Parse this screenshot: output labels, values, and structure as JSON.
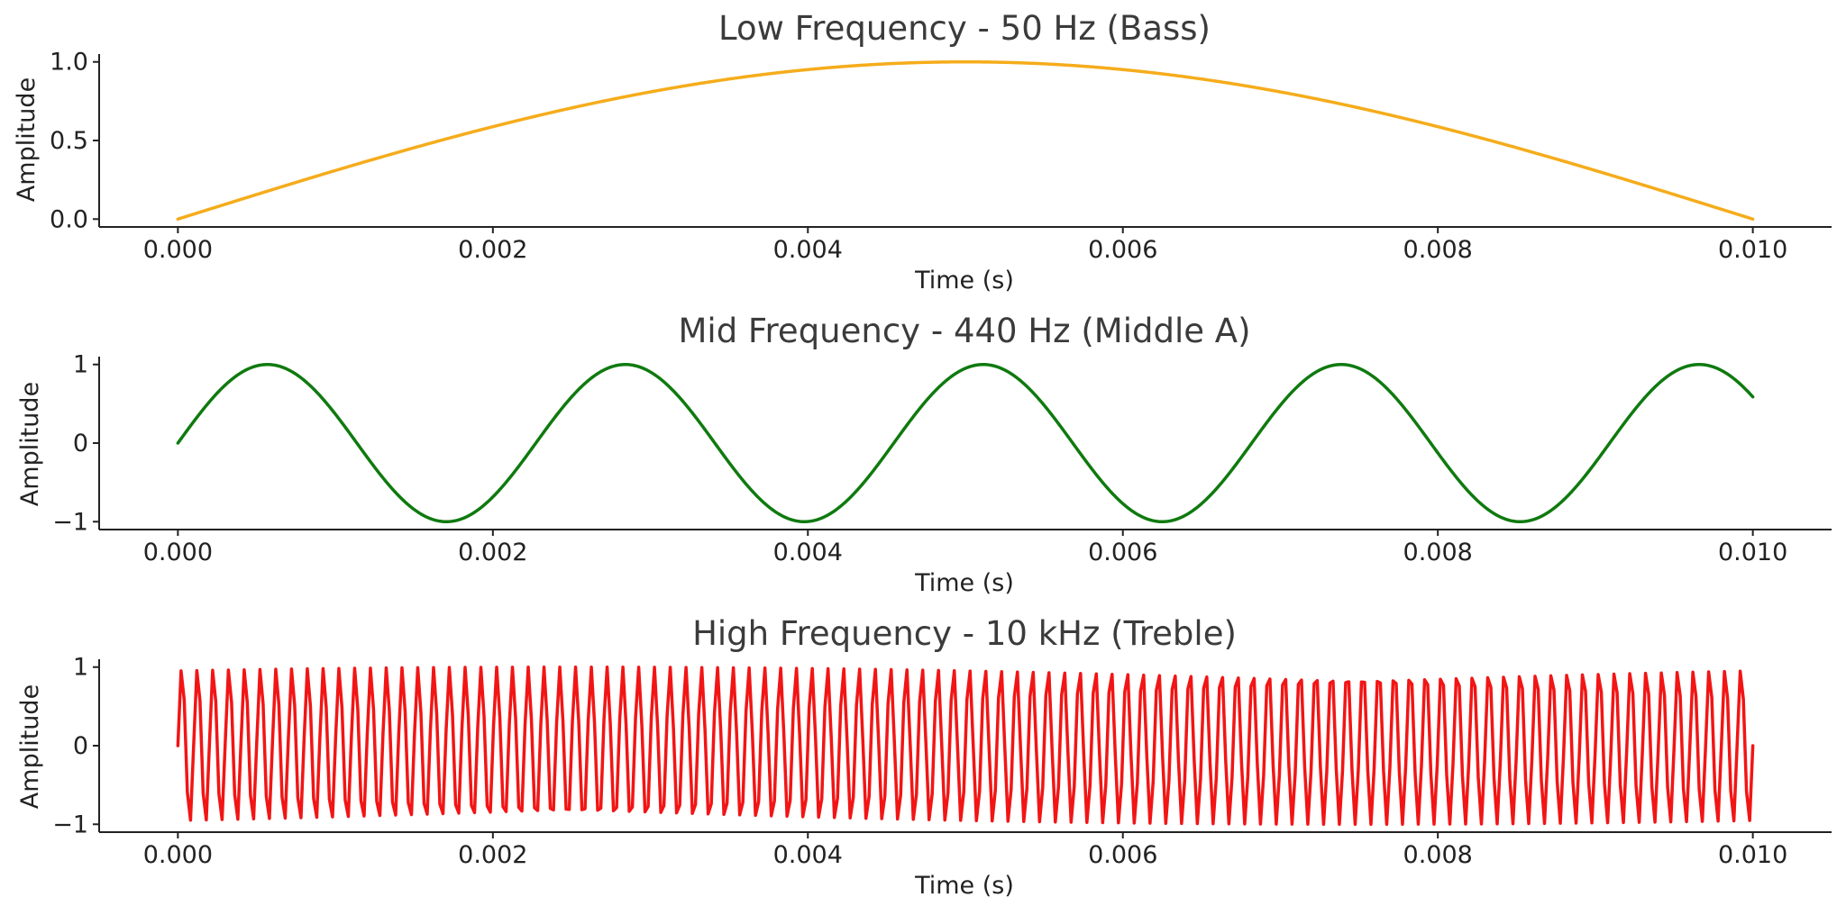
{
  "chart_data": [
    {
      "type": "line",
      "title": "Low Frequency - 50 Hz (Bass)",
      "xlabel": "Time (s)",
      "ylabel": "Amplitude",
      "xlim": [
        -0.0005,
        0.0105
      ],
      "ylim": [
        -0.05,
        1.05
      ],
      "xticks": [
        0,
        0.002,
        0.004,
        0.006,
        0.008,
        0.01
      ],
      "xtick_labels": [
        "0.000",
        "0.002",
        "0.004",
        "0.006",
        "0.008",
        "0.010"
      ],
      "yticks": [
        0,
        0.5,
        1
      ],
      "ytick_labels": [
        "0.0",
        "0.5",
        "1.0"
      ],
      "grid": false,
      "series": [
        {
          "function": "sine",
          "frequency_hz": 50,
          "amplitude": 1,
          "x_range": [
            0,
            0.01
          ],
          "samples": 1000,
          "color": "#f5ac1b"
        }
      ]
    },
    {
      "type": "line",
      "title": "Mid Frequency - 440 Hz (Middle A)",
      "xlabel": "Time (s)",
      "ylabel": "Amplitude",
      "xlim": [
        -0.0005,
        0.0105
      ],
      "ylim": [
        -1.1,
        1.1
      ],
      "xticks": [
        0,
        0.002,
        0.004,
        0.006,
        0.008,
        0.01
      ],
      "xtick_labels": [
        "0.000",
        "0.002",
        "0.004",
        "0.006",
        "0.008",
        "0.010"
      ],
      "yticks": [
        -1,
        0,
        1
      ],
      "ytick_labels": [
        "−1",
        "0",
        "1"
      ],
      "grid": false,
      "series": [
        {
          "function": "sine",
          "frequency_hz": 440,
          "amplitude": 1,
          "x_range": [
            0,
            0.01
          ],
          "samples": 1000,
          "color": "#0f7a0f"
        }
      ]
    },
    {
      "type": "line",
      "title": "High Frequency - 10 kHz (Treble)",
      "xlabel": "Time (s)",
      "ylabel": "Amplitude",
      "xlim": [
        -0.0005,
        0.0105
      ],
      "ylim": [
        -1.1,
        1.1
      ],
      "xticks": [
        0,
        0.002,
        0.004,
        0.006,
        0.008,
        0.01
      ],
      "xtick_labels": [
        "0.000",
        "0.002",
        "0.004",
        "0.006",
        "0.008",
        "0.010"
      ],
      "yticks": [
        -1,
        0,
        1
      ],
      "ytick_labels": [
        "−1",
        "0",
        "1"
      ],
      "grid": false,
      "series": [
        {
          "function": "sine",
          "frequency_hz": 10000,
          "amplitude": 1,
          "x_range": [
            0,
            0.01
          ],
          "samples": 500,
          "color": "#f21515"
        }
      ]
    }
  ]
}
